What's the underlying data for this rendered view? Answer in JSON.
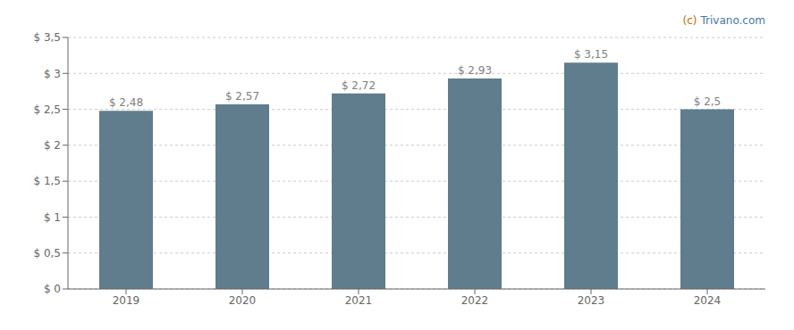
{
  "chart_data": {
    "type": "bar",
    "categories": [
      "2019",
      "2020",
      "2021",
      "2022",
      "2023",
      "2024"
    ],
    "values": [
      2.48,
      2.57,
      2.72,
      2.93,
      3.15,
      2.5
    ],
    "value_labels": [
      "$ 2,48",
      "$ 2,57",
      "$ 2,72",
      "$ 2,93",
      "$ 3,15",
      "$ 2,5"
    ],
    "data_labels": true,
    "color": "#5f7d8c",
    "ylim": [
      0,
      3.5
    ],
    "yticks": [
      {
        "value": 0,
        "label": "$ 0"
      },
      {
        "value": 0.5,
        "label": "$ 0,5"
      },
      {
        "value": 1.0,
        "label": "$ 1"
      },
      {
        "value": 1.5,
        "label": "$ 1,5"
      },
      {
        "value": 2.0,
        "label": "$ 2"
      },
      {
        "value": 2.5,
        "label": "$ 2,5"
      },
      {
        "value": 3.0,
        "label": "$ 3"
      },
      {
        "value": 3.5,
        "label": "$ 3,5"
      }
    ],
    "grid": true,
    "annotations": [
      {
        "text": "(c)",
        "color": "#cc6600"
      },
      {
        "text": "Trivano.com",
        "color": "#4477aa"
      }
    ]
  }
}
